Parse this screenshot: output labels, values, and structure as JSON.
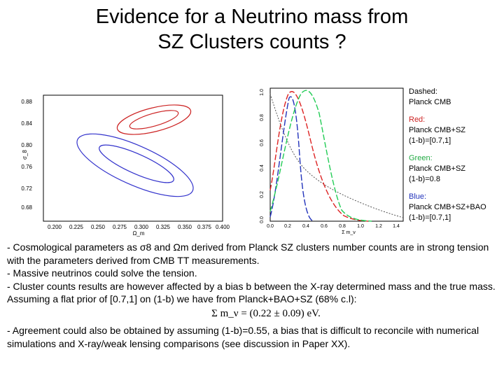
{
  "title_line1": "Evidence for a Neutrino mass from",
  "title_line2": "SZ Clusters counts ?",
  "left_plot": {
    "xlabel": "Ω_m",
    "ylabel": "σ_8",
    "xticks": [
      "0.200",
      "0.225",
      "0.250",
      "0.275",
      "0.300",
      "0.325",
      "0.350",
      "0.375",
      "0.400"
    ],
    "yticks": [
      "0.88",
      "0.84",
      "0.80",
      "0.76",
      "0.72",
      "0.68"
    ],
    "colors": {
      "red": "#cc2222",
      "blue": "#3333cc"
    }
  },
  "right_plot": {
    "xlabel": "Σ m_ν",
    "xticks": [
      "0.0",
      "0.2",
      "0.4",
      "0.6",
      "0.8",
      "1.0",
      "1.2",
      "1.4"
    ],
    "yticks": [
      "0.0",
      "0.2",
      "0.4",
      "0.6",
      "0.8",
      "1.0"
    ],
    "colors": {
      "red": "#dd2222",
      "blue": "#2233bb",
      "green": "#22cc55",
      "dashed": "#555555"
    }
  },
  "legend": {
    "dashed_title": "Dashed:",
    "dashed_desc": "Planck CMB",
    "red_title": "Red:",
    "red_desc1": "Planck CMB+SZ",
    "red_desc2": "(1-b)=[0.7,1]",
    "green_title": "Green:",
    "green_desc1": "Planck CMB+SZ",
    "green_desc2": "(1-b)=0.8",
    "blue_title": "Blue:",
    "blue_desc1": "Planck CMB+SZ+BAO",
    "blue_desc2": "(1-b)=[0.7,1]",
    "red_color": "#cc2222",
    "green_color": "#22aa44",
    "blue_color": "#2233bb"
  },
  "text": {
    "p1": "- Cosmological parameters as σ8 and Ωm derived from Planck SZ clusters number counts are in strong tension with the parameters derived from CMB TT measurements.",
    "p2": "- Massive neutrinos could solve the tension.",
    "p3": "- Cluster counts results are however affected by a bias b between the X-ray determined mass and the true mass. Assuming a flat prior of [0.7,1] on (1-b) we have from Planck+BAO+SZ (68% c.l):",
    "formula": "Σ m_ν = (0.22 ± 0.09) eV.",
    "p4": "- Agreement could also be obtained by assuming (1-b)=0.55, a bias that is difficult to reconcile with numerical simulations and X-ray/weak lensing comparisons (see discussion in Paper XX)."
  }
}
